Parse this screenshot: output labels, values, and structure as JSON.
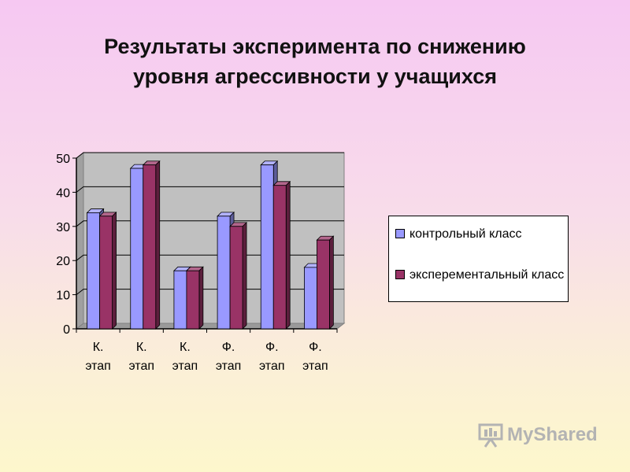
{
  "title": {
    "line1": "Результаты эксперимента по снижению",
    "line2": "уровня агрессивности у учащихся"
  },
  "chart_data": {
    "type": "bar",
    "categories": [
      [
        "К.",
        "этап"
      ],
      [
        "К.",
        "этап"
      ],
      [
        "К.",
        "этап"
      ],
      [
        "Ф.",
        "этап"
      ],
      [
        "Ф.",
        "этап"
      ],
      [
        "Ф.",
        "этап"
      ]
    ],
    "series": [
      {
        "name": "контрольный класс",
        "color": "#9999ff",
        "values": [
          34,
          47,
          17,
          33,
          48,
          18
        ]
      },
      {
        "name": "эксперементальный класс",
        "color": "#993366",
        "values": [
          33,
          48,
          17,
          30,
          42,
          26
        ]
      }
    ],
    "ylim": [
      0,
      50
    ],
    "yticks": [
      0,
      10,
      20,
      30,
      40,
      50
    ],
    "grid": true,
    "legend_position": "right",
    "plot_bg": "#c0c0c0"
  },
  "legend": {
    "items": [
      {
        "label": "контрольный класс",
        "color": "#9999ff"
      },
      {
        "label": "эксперементальный класс",
        "color": "#993366"
      }
    ]
  },
  "watermark": {
    "text": "MyShared",
    "icon": "presentation-board-icon"
  }
}
